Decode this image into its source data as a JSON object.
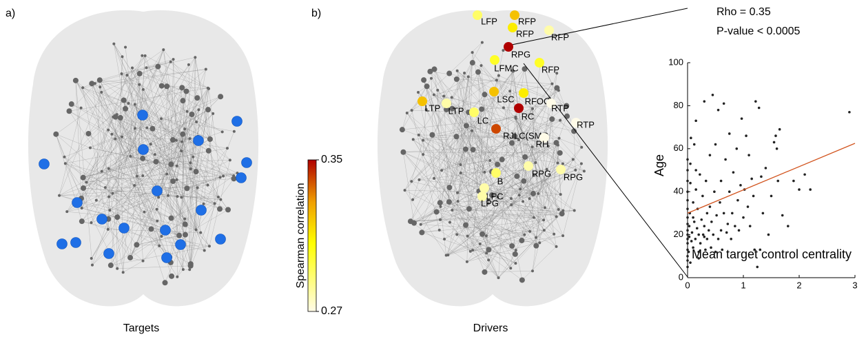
{
  "panels": {
    "a": "a)",
    "b": "b)"
  },
  "captions": {
    "targets": "Targets",
    "drivers": "Drivers"
  },
  "colorbar": {
    "label": "Spearman correlation",
    "range": [
      0.27,
      0.35
    ],
    "ticks": [
      0.35,
      0.27
    ]
  },
  "drivers": [
    {
      "label": "LFP",
      "value": 0.29
    },
    {
      "label": "RFP",
      "value": 0.32
    },
    {
      "label": "RFP",
      "value": 0.31
    },
    {
      "label": "RFP",
      "value": 0.28
    },
    {
      "label": "RPG",
      "value": 0.35
    },
    {
      "label": "LFMC",
      "value": 0.3
    },
    {
      "label": "RFP",
      "value": 0.3
    },
    {
      "label": "LSC",
      "value": 0.32
    },
    {
      "label": "RFOC",
      "value": 0.31
    },
    {
      "label": "LTP",
      "value": 0.32
    },
    {
      "label": "LTP",
      "value": 0.28
    },
    {
      "label": "RTP",
      "value": 0.27
    },
    {
      "label": "RC",
      "value": 0.35
    },
    {
      "label": "LC",
      "value": 0.29
    },
    {
      "label": "RTP",
      "value": 0.27
    },
    {
      "label": "RJLC(SMC",
      "value": 0.34
    },
    {
      "label": "RH",
      "value": 0.27
    },
    {
      "label": "B",
      "value": 0.29
    },
    {
      "label": "RPG",
      "value": 0.28
    },
    {
      "label": "RPG",
      "value": 0.28
    },
    {
      "label": "LPC",
      "value": 0.28
    },
    {
      "label": "LPG",
      "value": 0.28
    }
  ],
  "chart_data": {
    "type": "scatter",
    "annotations": [
      "Rho = 0.35",
      "P-value < 0.0005"
    ],
    "xlabel": "Mean target control centrality",
    "ylabel": "Age",
    "color": "#222222",
    "fit_color": "#d2541e",
    "xlim": [
      0,
      3
    ],
    "ylim": [
      0,
      100
    ],
    "xticks": [
      0,
      1,
      2,
      3
    ],
    "yticks": [
      0,
      20,
      40,
      60,
      80,
      100
    ],
    "fit": {
      "x": [
        0,
        3
      ],
      "y": [
        30,
        62.5
      ]
    },
    "x": [
      0,
      0,
      0,
      0,
      0,
      0,
      0,
      0,
      0,
      0,
      0,
      0,
      0,
      0,
      0,
      0,
      0.02,
      0.03,
      0.03,
      0.04,
      0.05,
      0.05,
      0.06,
      0.07,
      0.08,
      0.1,
      0.1,
      0.12,
      0.12,
      0.14,
      0.15,
      0.15,
      0.17,
      0.18,
      0.2,
      0.2,
      0.22,
      0.23,
      0.25,
      0.27,
      0.28,
      0.3,
      0.3,
      0.32,
      0.33,
      0.35,
      0.35,
      0.38,
      0.4,
      0.4,
      0.42,
      0.43,
      0.45,
      0.46,
      0.48,
      0.5,
      0.5,
      0.52,
      0.55,
      0.55,
      0.58,
      0.6,
      0.6,
      0.62,
      0.65,
      0.65,
      0.68,
      0.7,
      0.72,
      0.75,
      0.75,
      0.78,
      0.8,
      0.82,
      0.85,
      0.88,
      0.9,
      0.92,
      0.95,
      0.97,
      1.0,
      1.02,
      1.05,
      1.08,
      1.1,
      1.12,
      1.15,
      1.18,
      1.2,
      1.22,
      1.25,
      1.28,
      1.3,
      1.32,
      1.35,
      1.4,
      1.45,
      1.5,
      1.55,
      1.58,
      1.6,
      1.62,
      1.65,
      1.7,
      1.8,
      1.9,
      2.0,
      2.1,
      2.2,
      2.9,
      0.05,
      0.1,
      0.2,
      0.3,
      0.15
    ],
    "y": [
      5,
      8,
      10,
      13,
      16,
      18,
      20,
      22,
      25,
      28,
      32,
      36,
      40,
      45,
      50,
      55,
      12,
      19,
      24,
      30,
      44,
      53,
      65,
      17,
      21,
      35,
      14,
      62,
      26,
      18,
      41,
      73,
      23,
      32,
      20,
      12,
      48,
      16,
      27,
      38,
      20,
      82,
      24,
      13,
      45,
      30,
      18,
      22,
      33,
      57,
      14,
      26,
      85,
      20,
      40,
      12,
      62,
      29,
      78,
      18,
      35,
      22,
      45,
      13,
      81,
      30,
      55,
      21,
      25,
      67,
      40,
      18,
      30,
      49,
      24,
      60,
      36,
      22,
      43,
      74,
      28,
      41,
      66,
      33,
      57,
      24,
      46,
      38,
      13,
      82,
      5,
      79,
      13,
      47,
      30,
      51,
      20,
      38,
      63,
      66,
      60,
      45,
      69,
      29,
      24,
      45,
      41,
      48,
      41,
      77,
      7,
      28,
      9,
      19,
      50
    ]
  }
}
